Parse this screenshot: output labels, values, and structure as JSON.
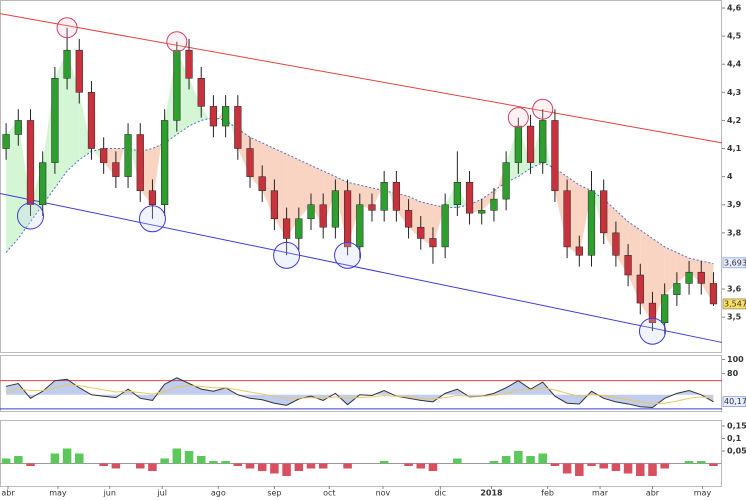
{
  "chart_data": [
    {
      "type": "candlestick",
      "xlim": [
        0,
        59.2
      ],
      "ylim": [
        3.376,
        4.625
      ],
      "yticks": [
        {
          "value": 4.6,
          "label": "4,6"
        },
        {
          "value": 4.5,
          "label": "4,5"
        },
        {
          "value": 4.4,
          "label": "4,4"
        },
        {
          "value": 4.3,
          "label": "4,3"
        },
        {
          "value": 4.2,
          "label": "4,2"
        },
        {
          "value": 4.1,
          "label": "4,1"
        },
        {
          "value": 4,
          "label": "4"
        },
        {
          "value": 3.9,
          "label": "3,9"
        },
        {
          "value": 3.8,
          "label": "3,8"
        },
        {
          "value": 3.6,
          "label": "3,6"
        },
        {
          "value": 3.5,
          "label": "3,5"
        }
      ],
      "up_color": "#2e9e2e",
      "down_color": "#c8323c",
      "open": [
        4.1,
        4.15,
        4.2,
        3.9,
        4.05,
        4.35,
        4.45,
        4.3,
        4.1,
        4.05,
        4.0,
        4.15,
        3.95,
        3.9,
        4.2,
        4.45,
        4.35,
        4.25,
        4.18,
        4.25,
        4.1,
        4.0,
        3.95,
        3.85,
        3.78,
        3.85,
        3.9,
        3.82,
        3.95,
        3.75,
        3.9,
        3.88,
        3.98,
        3.88,
        3.82,
        3.78,
        3.75,
        3.9,
        3.98,
        3.87,
        3.88,
        3.92,
        4.05,
        4.18,
        4.05,
        4.2,
        3.95,
        3.75,
        3.72,
        3.95,
        3.8,
        3.72,
        3.65,
        3.55,
        3.48,
        3.58,
        3.62,
        3.66,
        3.62
      ],
      "high": [
        4.19,
        4.24,
        4.24,
        4.09,
        4.39,
        4.53,
        4.49,
        4.34,
        4.14,
        4.09,
        4.19,
        4.19,
        3.99,
        4.24,
        4.48,
        4.49,
        4.39,
        4.29,
        4.29,
        4.29,
        4.14,
        4.04,
        3.99,
        3.89,
        3.89,
        3.94,
        3.94,
        3.99,
        3.99,
        3.94,
        3.94,
        4.02,
        4.02,
        3.92,
        3.86,
        3.82,
        3.94,
        4.09,
        4.02,
        3.92,
        3.96,
        4.09,
        4.21,
        4.22,
        4.24,
        4.24,
        3.99,
        3.79,
        4.02,
        3.99,
        3.84,
        3.76,
        3.69,
        3.59,
        3.62,
        3.66,
        3.7,
        3.7,
        3.66
      ],
      "low": [
        4.06,
        4.11,
        3.86,
        3.86,
        4.01,
        4.31,
        4.26,
        4.06,
        4.01,
        3.96,
        3.96,
        3.91,
        3.85,
        3.86,
        4.16,
        4.31,
        4.21,
        4.14,
        4.14,
        4.06,
        3.96,
        3.91,
        3.81,
        3.72,
        3.74,
        3.81,
        3.78,
        3.78,
        3.72,
        3.71,
        3.84,
        3.84,
        3.84,
        3.78,
        3.74,
        3.69,
        3.71,
        3.86,
        3.83,
        3.83,
        3.84,
        3.88,
        4.01,
        4.01,
        4.01,
        3.91,
        3.71,
        3.68,
        3.68,
        3.76,
        3.68,
        3.61,
        3.51,
        3.45,
        3.44,
        3.54,
        3.58,
        3.58,
        3.54
      ],
      "close": [
        4.15,
        4.2,
        3.9,
        4.05,
        4.35,
        4.45,
        4.3,
        4.1,
        4.05,
        4.0,
        4.15,
        3.95,
        3.9,
        4.2,
        4.45,
        4.35,
        4.25,
        4.18,
        4.25,
        4.1,
        4.0,
        3.95,
        3.85,
        3.78,
        3.85,
        3.9,
        3.82,
        3.95,
        3.75,
        3.9,
        3.88,
        3.98,
        3.88,
        3.82,
        3.78,
        3.75,
        3.9,
        3.98,
        3.87,
        3.88,
        3.92,
        4.05,
        4.18,
        4.05,
        4.2,
        3.95,
        3.75,
        3.72,
        3.95,
        3.8,
        3.72,
        3.65,
        3.55,
        3.48,
        3.58,
        3.62,
        3.66,
        3.62,
        3.547
      ],
      "ma": {
        "color": "#4a6fd0",
        "values": [
          3.73,
          3.78,
          3.84,
          3.9,
          3.96,
          4.02,
          4.06,
          4.09,
          4.1,
          4.1,
          4.1,
          4.09,
          4.1,
          4.12,
          4.15,
          4.18,
          4.2,
          4.21,
          4.2,
          4.17,
          4.14,
          4.12,
          4.1,
          4.08,
          4.06,
          4.04,
          4.02,
          4.0,
          3.98,
          3.97,
          3.96,
          3.95,
          3.94,
          3.93,
          3.91,
          3.9,
          3.89,
          3.89,
          3.9,
          3.92,
          3.95,
          3.98,
          4.0,
          4.03,
          4.05,
          4.03,
          4.0,
          3.97,
          3.95,
          3.92,
          3.88,
          3.84,
          3.81,
          3.78,
          3.75,
          3.73,
          3.71,
          3.7,
          3.69
        ]
      },
      "above_color": "#b8f0b8",
      "below_color": "#f7b89a",
      "trendlines": [
        {
          "color": "#e0443c",
          "x": [
            0,
            59.2
          ],
          "y": [
            4.58,
            4.12
          ]
        },
        {
          "color": "#3c3cd0",
          "x": [
            0,
            59.2
          ],
          "y": [
            3.94,
            3.41
          ]
        }
      ],
      "circled_highs": [
        5,
        14,
        42,
        44
      ],
      "circled_lows": [
        2,
        12,
        23,
        28,
        53
      ],
      "ma_last": {
        "value": 3.6932,
        "label": "3,6932"
      },
      "last_price": {
        "value": 3.547,
        "label": "3,547"
      }
    },
    {
      "type": "line",
      "xlim": [
        0,
        59.2
      ],
      "ylim": [
        27,
        105
      ],
      "yticks": [
        100,
        80
      ],
      "series": [
        {
          "color": "#4a6fd0",
          "values": [
            62,
            66,
            45,
            55,
            70,
            72,
            60,
            50,
            48,
            46,
            58,
            45,
            42,
            65,
            74,
            66,
            58,
            55,
            60,
            50,
            45,
            43,
            38,
            35,
            44,
            48,
            42,
            52,
            36,
            50,
            49,
            56,
            48,
            45,
            42,
            40,
            52,
            58,
            47,
            48,
            52,
            60,
            70,
            58,
            68,
            48,
            38,
            37,
            55,
            45,
            40,
            37,
            33,
            32,
            45,
            52,
            56,
            50,
            40
          ]
        },
        {
          "color": "#e8c860",
          "values": [
            55,
            58,
            56,
            56,
            60,
            64,
            63,
            60,
            57,
            54,
            55,
            53,
            51,
            55,
            61,
            63,
            62,
            60,
            60,
            57,
            54,
            51,
            48,
            45,
            45,
            46,
            45,
            47,
            45,
            46,
            47,
            49,
            48,
            47,
            45,
            44,
            46,
            49,
            48,
            48,
            49,
            52,
            57,
            57,
            60,
            57,
            52,
            48,
            50,
            49,
            46,
            43,
            40,
            37,
            38,
            41,
            45,
            47,
            45
          ]
        }
      ],
      "hlines": [
        {
          "value": 70,
          "color": "#e0443c"
        },
        {
          "value": 30,
          "color": "#3c3cd0"
        }
      ],
      "last_value": {
        "value": 40.179,
        "label": "40,179"
      }
    },
    {
      "type": "bar",
      "xlim": [
        0,
        59.2
      ],
      "ylim": [
        -0.09,
        0.17
      ],
      "yticks": [
        {
          "value": 0.15,
          "label": "0,15"
        },
        {
          "value": 0.1,
          "label": "0,1"
        },
        {
          "value": 0.05,
          "label": "0,05"
        }
      ],
      "up_color": "#5cc85c",
      "down_color": "#d85060",
      "values": [
        0.02,
        0.03,
        -0.01,
        0.0,
        0.04,
        0.06,
        0.04,
        0.0,
        -0.01,
        -0.02,
        0.0,
        -0.02,
        -0.03,
        0.02,
        0.06,
        0.05,
        0.03,
        0.01,
        0.01,
        -0.01,
        -0.02,
        -0.03,
        -0.04,
        -0.05,
        -0.03,
        -0.02,
        -0.02,
        0.0,
        -0.02,
        0.0,
        0.0,
        0.01,
        0.0,
        -0.01,
        -0.02,
        -0.03,
        0.0,
        0.02,
        0.0,
        0.0,
        0.01,
        0.03,
        0.05,
        0.03,
        0.04,
        -0.01,
        -0.04,
        -0.05,
        -0.01,
        -0.02,
        -0.03,
        -0.04,
        -0.05,
        -0.05,
        -0.02,
        0.0,
        0.01,
        0.01,
        -0.01
      ],
      "xticks": [
        {
          "value": 0.66,
          "label": "abr"
        },
        {
          "value": 4.75,
          "label": "may"
        },
        {
          "value": 9.0,
          "label": "jun"
        },
        {
          "value": 13.3,
          "label": "jul"
        },
        {
          "value": 17.9,
          "label": "ago"
        },
        {
          "value": 22.5,
          "label": "sep"
        },
        {
          "value": 27.0,
          "label": "oct"
        },
        {
          "value": 31.4,
          "label": "nov"
        },
        {
          "value": 36.1,
          "label": "dic"
        },
        {
          "value": 40.3,
          "label": "2018"
        },
        {
          "value": 44.9,
          "label": "feb"
        },
        {
          "value": 49.2,
          "label": "mar"
        },
        {
          "value": 53.5,
          "label": "abr"
        },
        {
          "value": 57.6,
          "label": "may"
        }
      ]
    }
  ]
}
